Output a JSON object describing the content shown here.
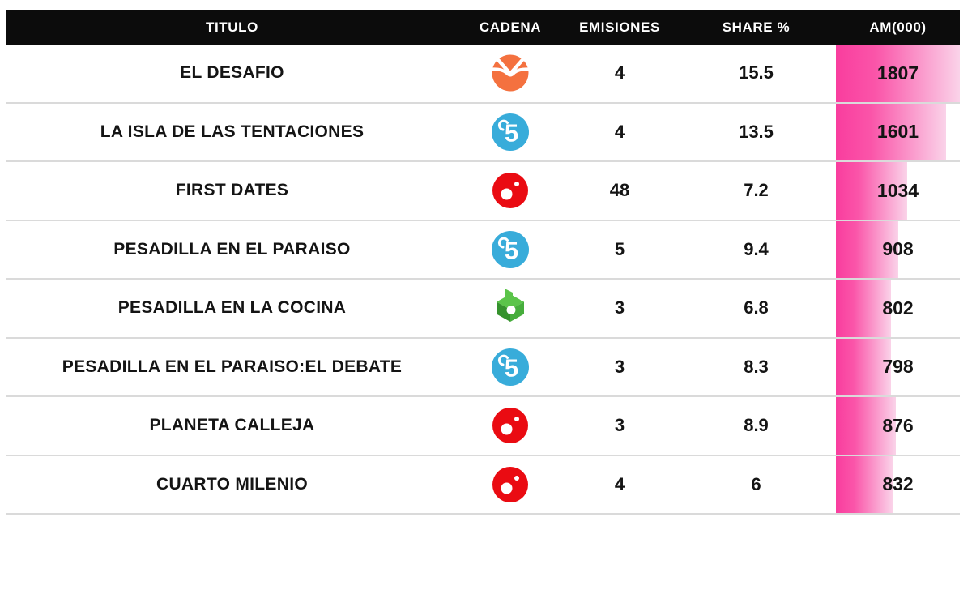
{
  "table": {
    "columns": [
      {
        "key": "titulo",
        "label": "TITULO"
      },
      {
        "key": "cadena",
        "label": "CADENA"
      },
      {
        "key": "emisiones",
        "label": "EMISIONES"
      },
      {
        "key": "share",
        "label": "SHARE %"
      },
      {
        "key": "am",
        "label": "AM(000)"
      }
    ],
    "rows": [
      {
        "titulo": "EL DESAFIO",
        "cadena": "antena3",
        "emisiones": "4",
        "share": "15.5",
        "am": 1807
      },
      {
        "titulo": "LA ISLA DE LAS TENTACIONES",
        "cadena": "telecinco",
        "emisiones": "4",
        "share": "13.5",
        "am": 1601
      },
      {
        "titulo": "FIRST DATES",
        "cadena": "cuatro",
        "emisiones": "48",
        "share": "7.2",
        "am": 1034
      },
      {
        "titulo": "PESADILLA EN EL PARAISO",
        "cadena": "telecinco",
        "emisiones": "5",
        "share": "9.4",
        "am": 908
      },
      {
        "titulo": "PESADILLA EN LA COCINA",
        "cadena": "lasexta",
        "emisiones": "3",
        "share": "6.8",
        "am": 802
      },
      {
        "titulo": "PESADILLA EN EL PARAISO:EL DEBATE",
        "cadena": "telecinco",
        "emisiones": "3",
        "share": "8.3",
        "am": 798
      },
      {
        "titulo": "PLANETA CALLEJA",
        "cadena": "cuatro",
        "emisiones": "3",
        "share": "8.9",
        "am": 876
      },
      {
        "titulo": "CUARTO MILENIO",
        "cadena": "cuatro",
        "emisiones": "4",
        "share": "6",
        "am": 832
      }
    ],
    "am_max": 1807
  },
  "colors": {
    "header_bg": "#0c0c0c",
    "header_text": "#ffffff",
    "row_text": "#141414",
    "separator": "#dadada",
    "bar_start": "#f93d9e",
    "bar_mid": "#fa55a9",
    "bar_end": "#fad3e9",
    "antena3": "#f4713f",
    "telecinco": "#38acda",
    "cuatro": "#ea0b12",
    "lasexta_light": "#5bc44a",
    "lasexta_mid": "#46ad3c",
    "lasexta_dark": "#35922d"
  },
  "icons": {
    "antena3": "antena3-icon",
    "telecinco": "telecinco-icon",
    "cuatro": "cuatro-icon",
    "lasexta": "lasexta-icon"
  },
  "chart_data": {
    "type": "table",
    "title": "",
    "columns": [
      "TITULO",
      "CADENA",
      "EMISIONES",
      "SHARE %",
      "AM(000)"
    ],
    "rows": [
      [
        "EL DESAFIO",
        "Antena 3",
        4,
        15.5,
        1807
      ],
      [
        "LA ISLA DE LAS TENTACIONES",
        "Telecinco",
        4,
        13.5,
        1601
      ],
      [
        "FIRST DATES",
        "Cuatro",
        48,
        7.2,
        1034
      ],
      [
        "PESADILLA EN EL PARAISO",
        "Telecinco",
        5,
        9.4,
        908
      ],
      [
        "PESADILLA EN LA COCINA",
        "laSexta",
        3,
        6.8,
        802
      ],
      [
        "PESADILLA EN EL PARAISO:EL DEBATE",
        "Telecinco",
        3,
        8.3,
        798
      ],
      [
        "PLANETA CALLEJA",
        "Cuatro",
        3,
        8.9,
        876
      ],
      [
        "CUARTO MILENIO",
        "Cuatro",
        4,
        6,
        832
      ]
    ],
    "bar_column": "AM(000)",
    "bar_scale_max": 1807,
    "bar_direction": "left-to-right",
    "legend": "none",
    "grid": "row-separators-only"
  }
}
